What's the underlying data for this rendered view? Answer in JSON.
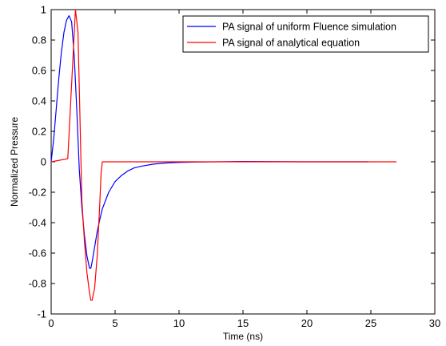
{
  "chart_data": {
    "type": "line",
    "xlabel": "Time (ns)",
    "ylabel": "Normalized Pressure",
    "xlim": [
      0,
      30
    ],
    "ylim": [
      -1,
      1
    ],
    "xticks": [
      0,
      5,
      10,
      15,
      20,
      25,
      30
    ],
    "yticks": [
      -1,
      -0.8,
      -0.6,
      -0.4,
      -0.2,
      0,
      0.2,
      0.4,
      0.6,
      0.8,
      1
    ],
    "xtick_labels": [
      "0",
      "5",
      "10",
      "15",
      "20",
      "25",
      "30"
    ],
    "ytick_labels": [
      "-1",
      "-0.8",
      "-0.6",
      "-0.4",
      "-0.2",
      "0",
      "0.2",
      "0.4",
      "0.6",
      "0.8",
      "1"
    ],
    "grid": false,
    "legend_position": "top-right",
    "series": [
      {
        "name": "PA signal of uniform Fluence simulation",
        "color": "#0000ff",
        "x": [
          0,
          0.2,
          0.4,
          0.6,
          0.8,
          1.0,
          1.2,
          1.4,
          1.6,
          1.8,
          2.0,
          2.2,
          2.4,
          2.6,
          2.8,
          3.0,
          3.1,
          3.2,
          3.4,
          3.6,
          3.8,
          4.0,
          4.5,
          5.0,
          5.5,
          6.0,
          6.5,
          7.0,
          8.0,
          9.0,
          10.0,
          11.0,
          12.0,
          15.0,
          20.0,
          24.8
        ],
        "y": [
          0,
          0.15,
          0.35,
          0.55,
          0.72,
          0.85,
          0.93,
          0.96,
          0.92,
          0.7,
          0.35,
          -0.05,
          -0.3,
          -0.48,
          -0.62,
          -0.7,
          -0.7,
          -0.66,
          -0.56,
          -0.46,
          -0.38,
          -0.31,
          -0.2,
          -0.13,
          -0.09,
          -0.06,
          -0.04,
          -0.03,
          -0.015,
          -0.008,
          -0.004,
          -0.002,
          -0.001,
          0.002,
          0,
          0
        ]
      },
      {
        "name": "PA signal of analytical equation",
        "color": "#ff0000",
        "x": [
          0,
          1.3,
          1.9,
          2.1,
          2.25,
          2.4,
          2.6,
          2.8,
          3.0,
          3.1,
          3.2,
          3.4,
          3.6,
          3.8,
          3.9,
          4.0,
          4.2,
          5.0,
          10.0,
          15.0,
          20.0,
          25.0,
          27.0
        ],
        "y": [
          0,
          0.02,
          1.0,
          0.85,
          0.3,
          -0.25,
          -0.52,
          -0.73,
          -0.86,
          -0.91,
          -0.91,
          -0.83,
          -0.62,
          -0.28,
          -0.08,
          0,
          0,
          0,
          0,
          0,
          0,
          0,
          0
        ]
      }
    ]
  }
}
